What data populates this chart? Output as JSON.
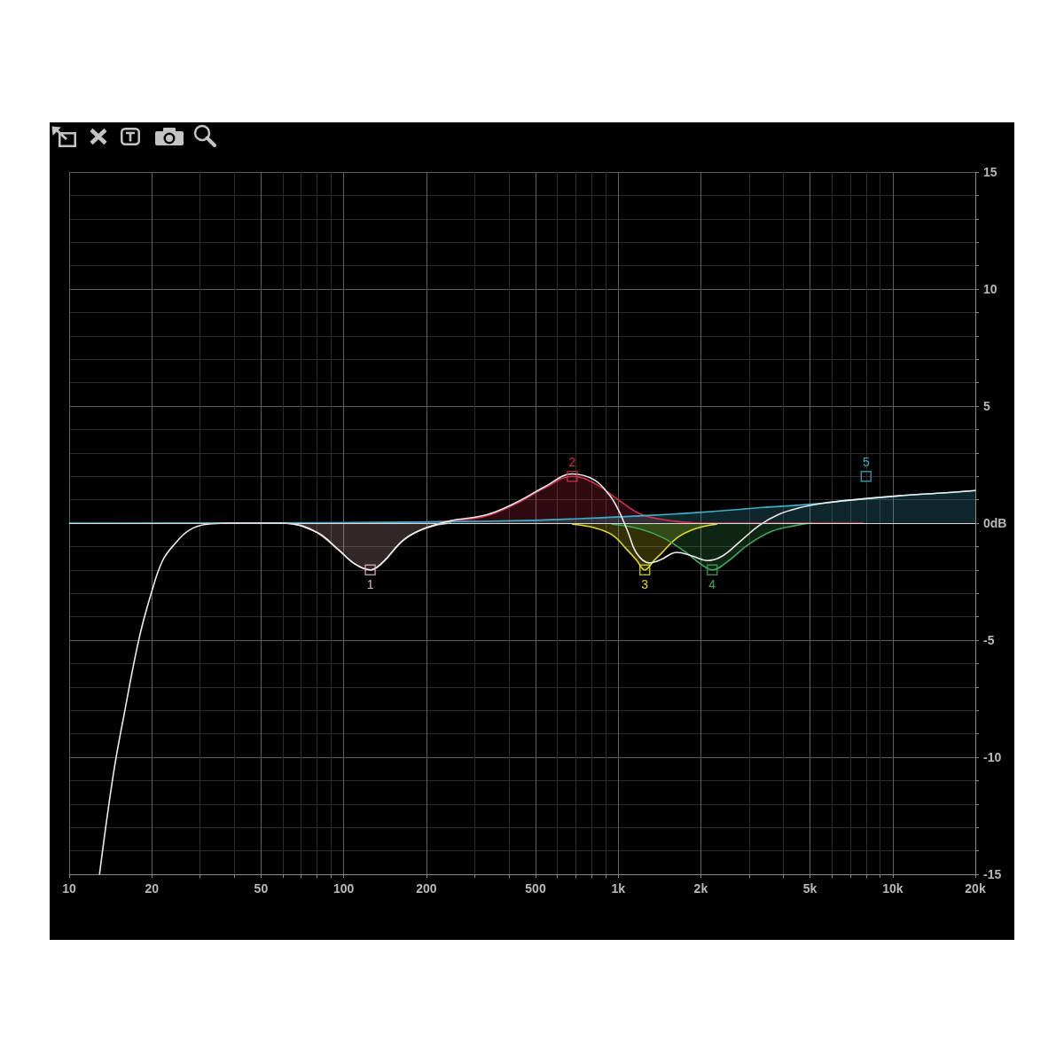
{
  "chart_data": {
    "type": "area",
    "log": "x",
    "xlim": [
      10,
      20000
    ],
    "ylim": [
      -15,
      15
    ],
    "xticks": [
      10,
      20,
      {
        "value": 30,
        "label": null
      },
      {
        "value": 40,
        "label": null
      },
      50,
      {
        "value": 60,
        "label": null
      },
      {
        "value": 70,
        "label": null
      },
      {
        "value": 80,
        "label": null
      },
      {
        "value": 90,
        "label": null
      },
      100,
      200,
      {
        "value": 300,
        "label": null
      },
      {
        "value": 400,
        "label": null
      },
      500,
      {
        "value": 600,
        "label": null
      },
      {
        "value": 700,
        "label": null
      },
      {
        "value": 800,
        "label": null
      },
      {
        "value": 900,
        "label": null
      },
      {
        "value": 1000,
        "label": "1k"
      },
      {
        "value": 2000,
        "label": "2k"
      },
      {
        "value": 3000,
        "label": null
      },
      {
        "value": 4000,
        "label": null
      },
      {
        "value": 5000,
        "label": "5k"
      },
      {
        "value": 6000,
        "label": null
      },
      {
        "value": 7000,
        "label": null
      },
      {
        "value": 8000,
        "label": null
      },
      {
        "value": 9000,
        "label": null
      },
      {
        "value": 10000,
        "label": "10k"
      },
      {
        "value": 20000,
        "label": "20k"
      }
    ],
    "yticks": [
      -15,
      {
        "value": -14,
        "label": null
      },
      {
        "value": -13,
        "label": null
      },
      {
        "value": -12,
        "label": null
      },
      {
        "value": -11,
        "label": null
      },
      -10,
      {
        "value": -9,
        "label": null
      },
      {
        "value": -8,
        "label": null
      },
      {
        "value": -7,
        "label": null
      },
      {
        "value": -6,
        "label": null
      },
      -5,
      {
        "value": -4,
        "label": null
      },
      {
        "value": -3,
        "label": null
      },
      {
        "value": -2,
        "label": null
      },
      {
        "value": -1,
        "label": null
      },
      {
        "value": 0,
        "label": "0dB"
      },
      {
        "value": 1,
        "label": null
      },
      {
        "value": 2,
        "label": null
      },
      {
        "value": 3,
        "label": null
      },
      {
        "value": 4,
        "label": null
      },
      5,
      {
        "value": 6,
        "label": null
      },
      {
        "value": 7,
        "label": null
      },
      {
        "value": 8,
        "label": null
      },
      {
        "value": 9,
        "label": null
      },
      10,
      {
        "value": 11,
        "label": null
      },
      {
        "value": 12,
        "label": null
      },
      {
        "value": 13,
        "label": null
      },
      {
        "value": 14,
        "label": null
      },
      15
    ],
    "grid": true,
    "marker": "none",
    "ref_lines": [
      {
        "axis": "y",
        "value": 0,
        "color": "#d8d8d8"
      }
    ],
    "annotations": [
      {
        "text": "1",
        "x": 125,
        "y": -2
      },
      {
        "text": "2",
        "x": 680,
        "y": 2
      },
      {
        "text": "3",
        "x": 1250,
        "y": -2
      },
      {
        "text": "4",
        "x": 2200,
        "y": -2
      },
      {
        "text": "5",
        "x": 8000,
        "y": 2
      }
    ],
    "series": [
      {
        "color": "#e4b4bc",
        "x": [
          60,
          70,
          80,
          95,
          110,
          125,
          138,
          164,
          190,
          215,
          245
        ],
        "values": [
          0,
          -0.1,
          -0.4,
          -1.1,
          -1.75,
          -2,
          -1.7,
          -0.75,
          -0.3,
          -0.1,
          0
        ]
      },
      {
        "color": "#d8304c",
        "x": [
          60,
          200,
          250,
          330,
          420,
          540,
          680,
          820,
          1000,
          1200,
          1470,
          2000,
          7800
        ],
        "values": [
          0,
          0.05,
          0.1,
          0.3,
          0.8,
          1.5,
          2,
          1.7,
          1,
          0.4,
          0.15,
          0,
          0
        ]
      },
      {
        "color": "#e0dc20",
        "x": [
          683,
          820,
          950,
          1080,
          1170,
          1250,
          1350,
          1435,
          1630,
          1900,
          2280
        ],
        "values": [
          -0.05,
          -0.2,
          -0.5,
          -1.15,
          -1.6,
          -2,
          -1.6,
          -1.3,
          -0.65,
          -0.25,
          -0.05
        ]
      },
      {
        "color": "#40a858",
        "x": [
          950,
          1200,
          1470,
          1765,
          2000,
          2200,
          2530,
          2950,
          3620,
          4440,
          5060
        ],
        "values": [
          -0.05,
          -0.25,
          -0.65,
          -1.25,
          -1.75,
          -2,
          -1.6,
          -0.95,
          -0.35,
          -0.1,
          0
        ]
      },
      {
        "color": "#3cb0c8",
        "x": [
          10,
          100,
          245,
          490,
          720,
          1060,
          1550,
          2280,
          3350,
          4930,
          7240,
          10600,
          15600,
          20000
        ],
        "values": [
          0,
          0.02,
          0.06,
          0.12,
          0.19,
          0.28,
          0.38,
          0.51,
          0.67,
          0.8,
          1,
          1.17,
          1.3,
          1.39
        ]
      },
      {
        "type": "line",
        "color": "#ececec",
        "x": [
          12.9,
          14.5,
          15.9,
          18,
          19.9,
          21.9,
          24.2,
          27.4,
          31.8,
          40,
          60,
          80,
          95,
          110,
          125,
          138,
          164,
          190,
          245,
          330,
          420,
          540,
          680,
          817,
          929,
          1003,
          1083,
          1169,
          1297,
          1435,
          1633,
          1857,
          2111,
          2400,
          2800,
          3264,
          3808,
          4563,
          5600,
          7240,
          10600,
          15600,
          20000
        ],
        "values": [
          -15,
          -10.7,
          -8.1,
          -4.9,
          -3,
          -1.6,
          -0.9,
          -0.3,
          -0.05,
          0,
          0,
          -0.4,
          -1.1,
          -1.75,
          -2,
          -1.7,
          -0.75,
          -0.3,
          0.1,
          0.35,
          0.85,
          1.55,
          2.1,
          1.85,
          1.2,
          0.55,
          -0.35,
          -1.3,
          -1.7,
          -1.55,
          -1.25,
          -1.4,
          -1.6,
          -1.4,
          -0.75,
          -0.1,
          0.35,
          0.65,
          0.85,
          1,
          1.17,
          1.3,
          1.39
        ]
      },
      {
        "type": "scatter",
        "marker": "square",
        "x": [
          125,
          680,
          1250,
          2200,
          8000
        ],
        "values": [
          -2,
          2,
          -2,
          -2,
          2
        ],
        "colors": [
          "#e4b4bc",
          "#d8304c",
          "#e0dc20",
          "#40a858",
          "#3cb0c8"
        ]
      }
    ]
  }
}
